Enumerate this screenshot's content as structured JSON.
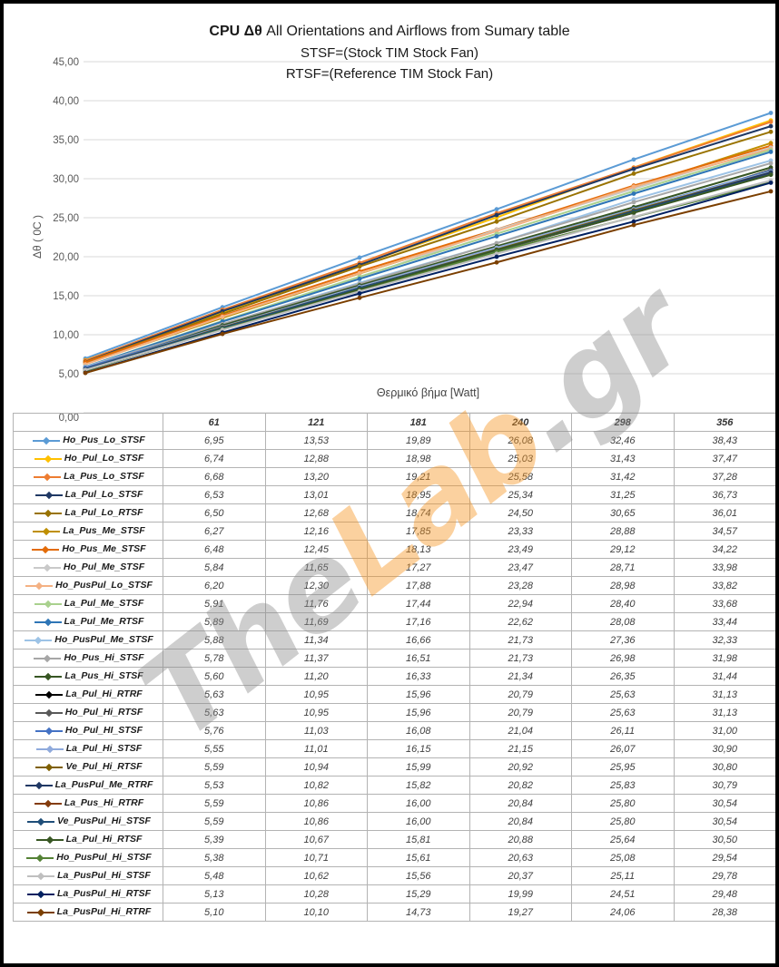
{
  "watermark": {
    "the": "The",
    "lab": "Lab",
    "gr": ".gr",
    "color_text": "#8C8C8C",
    "color_accent": "#F7941D"
  },
  "chart_data": {
    "type": "line",
    "title_bold": "CPU  Δθ",
    "title_rest": " All Orientations and  Airflows from Sumary table",
    "subtitle1": "STSF=(Stock TIM Stock Fan)",
    "subtitle2": "RTSF=(Reference TIM Stock Fan)",
    "xlabel": "Θερμικό βήμα [Watt]",
    "ylabel": "Δθ ( 0C )",
    "ylim": [
      0,
      45
    ],
    "ytick_step": 5,
    "decimal_separator": ",",
    "grid": true,
    "legend_position": "table-left-column",
    "categories": [
      "61",
      "121",
      "181",
      "240",
      "298",
      "356"
    ],
    "series": [
      {
        "name": "Ho_Pus_Lo_STSF",
        "color": "#5B9BD5",
        "values": [
          "6,95",
          "13,53",
          "19,89",
          "26,08",
          "32,46",
          "38,43"
        ]
      },
      {
        "name": "Ho_Pul_Lo_STSF",
        "color": "#FFC000",
        "values": [
          "6,74",
          "12,88",
          "18,98",
          "25,03",
          "31,43",
          "37,47"
        ]
      },
      {
        "name": "La_Pus_Lo_STSF",
        "color": "#ED7D31",
        "values": [
          "6,68",
          "13,20",
          "19,21",
          "25,58",
          "31,42",
          "37,28"
        ]
      },
      {
        "name": "La_Pul_Lo_STSF",
        "color": "#1F3864",
        "values": [
          "6,53",
          "13,01",
          "18,95",
          "25,34",
          "31,25",
          "36,73"
        ]
      },
      {
        "name": "La_Pul_Lo_RTSF",
        "color": "#997300",
        "values": [
          "6,50",
          "12,68",
          "18,74",
          "24,50",
          "30,65",
          "36,01"
        ]
      },
      {
        "name": "La_Pus_Me_STSF",
        "color": "#BF8F00",
        "values": [
          "6,27",
          "12,16",
          "17,85",
          "23,33",
          "28,88",
          "34,57"
        ]
      },
      {
        "name": "Ho_Pus_Me_STSF",
        "color": "#E36C09",
        "values": [
          "6,48",
          "12,45",
          "18,13",
          "23,49",
          "29,12",
          "34,22"
        ]
      },
      {
        "name": "Ho_Pul_Me_STSF",
        "color": "#C9C9C9",
        "values": [
          "5,84",
          "11,65",
          "17,27",
          "23,47",
          "28,71",
          "33,98"
        ]
      },
      {
        "name": "Ho_PusPul_Lo_STSF",
        "color": "#F4B183",
        "values": [
          "6,20",
          "12,30",
          "17,88",
          "23,28",
          "28,98",
          "33,82"
        ]
      },
      {
        "name": "La_Pul_Me_STSF",
        "color": "#A9D18E",
        "values": [
          "5,91",
          "11,76",
          "17,44",
          "22,94",
          "28,40",
          "33,68"
        ]
      },
      {
        "name": "La_Pul_Me_RTSF",
        "color": "#2E75B6",
        "values": [
          "5,89",
          "11,69",
          "17,16",
          "22,62",
          "28,08",
          "33,44"
        ]
      },
      {
        "name": "Ho_PusPul_Me_STSF",
        "color": "#9DC3E6",
        "values": [
          "5,88",
          "11,34",
          "16,66",
          "21,73",
          "27,36",
          "32,33"
        ]
      },
      {
        "name": "Ho_Pus_Hi_STSF",
        "color": "#A6A6A6",
        "values": [
          "5,78",
          "11,37",
          "16,51",
          "21,73",
          "26,98",
          "31,98"
        ]
      },
      {
        "name": "La_Pus_Hi_STSF",
        "color": "#375623",
        "values": [
          "5,60",
          "11,20",
          "16,33",
          "21,34",
          "26,35",
          "31,44"
        ]
      },
      {
        "name": "La_Pul_Hi_RTRF",
        "color": "#000000",
        "values": [
          "5,63",
          "10,95",
          "15,96",
          "20,79",
          "25,63",
          "31,13"
        ]
      },
      {
        "name": "Ho_Pul_Hi_RTSF",
        "color": "#595959",
        "values": [
          "5,63",
          "10,95",
          "15,96",
          "20,79",
          "25,63",
          "31,13"
        ]
      },
      {
        "name": "Ho_Pul_HI_STSF",
        "color": "#4472C4",
        "values": [
          "5,76",
          "11,03",
          "16,08",
          "21,04",
          "26,11",
          "31,00"
        ]
      },
      {
        "name": "La_Pul_Hi_STSF",
        "color": "#8FAADC",
        "values": [
          "5,55",
          "11,01",
          "16,15",
          "21,15",
          "26,07",
          "30,90"
        ]
      },
      {
        "name": "Ve_Pul_Hi_RTSF",
        "color": "#7F6000",
        "values": [
          "5,59",
          "10,94",
          "15,99",
          "20,92",
          "25,95",
          "30,80"
        ]
      },
      {
        "name": "La_PusPul_Me_RTRF",
        "color": "#203864",
        "values": [
          "5,53",
          "10,82",
          "15,82",
          "20,82",
          "25,83",
          "30,79"
        ]
      },
      {
        "name": "La_Pus_Hi_RTRF",
        "color": "#843C0C",
        "values": [
          "5,59",
          "10,86",
          "16,00",
          "20,84",
          "25,80",
          "30,54"
        ]
      },
      {
        "name": "Ve_PusPul_Hi_STSF",
        "color": "#1F4E79",
        "values": [
          "5,59",
          "10,86",
          "16,00",
          "20,84",
          "25,80",
          "30,54"
        ]
      },
      {
        "name": "La_Pul_Hi_RTSF",
        "color": "#385723",
        "values": [
          "5,39",
          "10,67",
          "15,81",
          "20,88",
          "25,64",
          "30,50"
        ]
      },
      {
        "name": "Ho_PusPul_Hi_STSF",
        "color": "#548235",
        "values": [
          "5,38",
          "10,71",
          "15,61",
          "20,63",
          "25,08",
          "29,54"
        ]
      },
      {
        "name": "La_PusPul_Hi_STSF",
        "color": "#BFBFBF",
        "values": [
          "5,48",
          "10,62",
          "15,56",
          "20,37",
          "25,11",
          "29,78"
        ]
      },
      {
        "name": "La_PusPul_Hi_RTSF",
        "color": "#002060",
        "values": [
          "5,13",
          "10,28",
          "15,29",
          "19,99",
          "24,51",
          "29,48"
        ]
      },
      {
        "name": "La_PusPul_Hi_RTRF",
        "color": "#7B3F00",
        "values": [
          "5,10",
          "10,10",
          "14,73",
          "19,27",
          "24,06",
          "28,38"
        ]
      }
    ]
  }
}
